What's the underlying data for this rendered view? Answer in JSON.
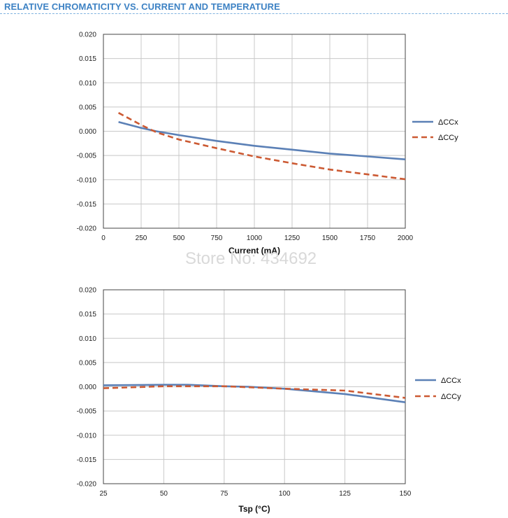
{
  "page": {
    "heading": "RELATIVE CHROMATICITY VS. CURRENT AND TEMPERATURE",
    "watermark": "Store No: 434692"
  },
  "colors": {
    "heading": "#3d82c4",
    "ccx": "#5b80b6",
    "ccy": "#cc5a33",
    "grid": "#c8c8c8",
    "plot_border": "#444444"
  },
  "chart_data": [
    {
      "type": "line",
      "title": "",
      "xlabel": "Current (mA)",
      "ylabel": "",
      "xlim": [
        0,
        2000
      ],
      "ylim": [
        -0.02,
        0.02
      ],
      "x_ticks": [
        "0",
        "250",
        "500",
        "750",
        "1000",
        "1250",
        "1500",
        "1750",
        "2000"
      ],
      "y_ticks": [
        "0.020",
        "0.015",
        "0.010",
        "0.005",
        "0.000",
        "-0.005",
        "-0.010",
        "-0.015",
        "-0.020"
      ],
      "grid": true,
      "legend": "right",
      "series": [
        {
          "name": "ΔCCx",
          "style": "solid",
          "x": [
            100,
            250,
            350,
            500,
            750,
            1000,
            1250,
            1500,
            1750,
            2000
          ],
          "y": [
            0.0019,
            0.0007,
            0.0,
            -0.0008,
            -0.002,
            -0.003,
            -0.0038,
            -0.0046,
            -0.0052,
            -0.0058
          ]
        },
        {
          "name": "ΔCCy",
          "style": "dashed",
          "x": [
            100,
            250,
            350,
            500,
            750,
            1000,
            1250,
            1500,
            1750,
            2000
          ],
          "y": [
            0.0038,
            0.0013,
            -0.0002,
            -0.0017,
            -0.0035,
            -0.0052,
            -0.0066,
            -0.0079,
            -0.0089,
            -0.0099
          ]
        }
      ]
    },
    {
      "type": "line",
      "title": "",
      "xlabel": "Tsp (°C)",
      "ylabel": "",
      "xlim": [
        25,
        150
      ],
      "ylim": [
        -0.02,
        0.02
      ],
      "x_ticks": [
        "25",
        "50",
        "75",
        "100",
        "125",
        "150"
      ],
      "y_ticks": [
        "0.020",
        "0.015",
        "0.010",
        "0.005",
        "0.000",
        "-0.005",
        "-0.010",
        "-0.015",
        "-0.020"
      ],
      "grid": true,
      "legend": "right",
      "series": [
        {
          "name": "ΔCCx",
          "style": "solid",
          "x": [
            25,
            50,
            60,
            75,
            85,
            100,
            125,
            150
          ],
          "y": [
            0.0003,
            0.0004,
            0.0004,
            0.0001,
            0.0,
            -0.0004,
            -0.0015,
            -0.0032
          ]
        },
        {
          "name": "ΔCCy",
          "style": "dashed",
          "x": [
            25,
            50,
            75,
            100,
            125,
            150
          ],
          "y": [
            -0.0003,
            0.0001,
            0.0001,
            -0.0004,
            -0.0008,
            -0.0023
          ]
        }
      ]
    }
  ]
}
